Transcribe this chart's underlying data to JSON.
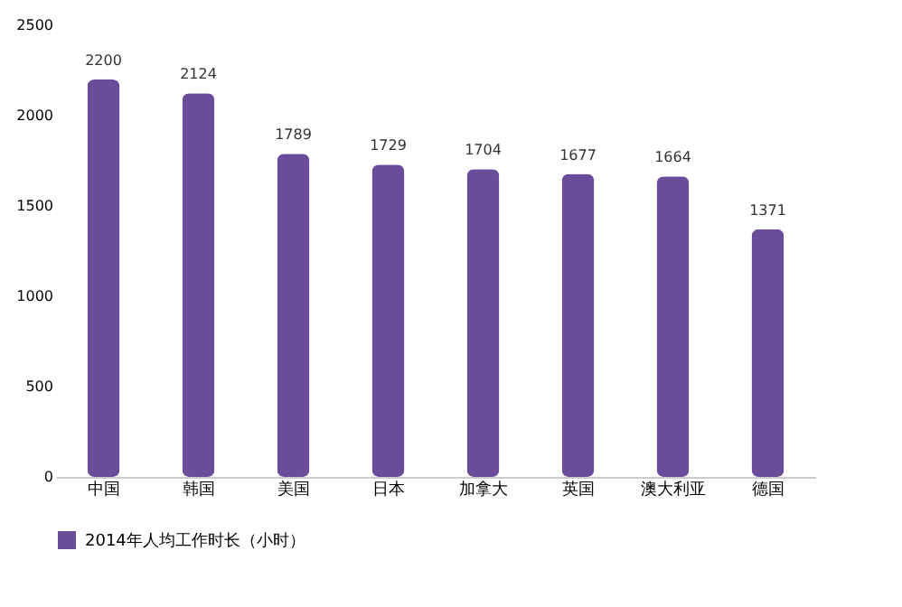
{
  "chart_data": {
    "type": "bar",
    "categories": [
      "中国",
      "韩国",
      "美国",
      "日本",
      "加拿大",
      "英国",
      "澳大利亚",
      "德国"
    ],
    "series": [
      {
        "name": "2014年人均工作时长（小时）",
        "color": "#6b4c9a",
        "values": [
          2200,
          2124,
          1789,
          1729,
          1704,
          1677,
          1664,
          1371
        ]
      }
    ],
    "ylim": [
      0,
      2500
    ],
    "yticks": [
      0,
      500,
      1000,
      1500,
      2000,
      2500
    ],
    "data_labels": true,
    "grid": false,
    "legend": "bottom"
  }
}
